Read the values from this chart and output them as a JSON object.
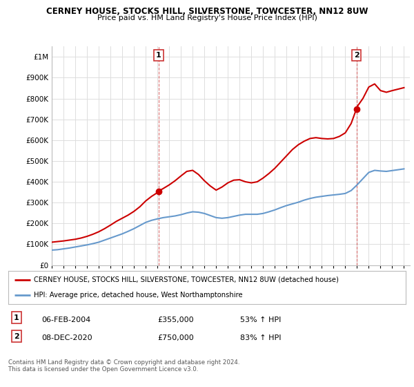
{
  "title": "CERNEY HOUSE, STOCKS HILL, SILVERSTONE, TOWCESTER, NN12 8UW",
  "subtitle": "Price paid vs. HM Land Registry's House Price Index (HPI)",
  "ytick_values": [
    0,
    100000,
    200000,
    300000,
    400000,
    500000,
    600000,
    700000,
    800000,
    900000,
    1000000
  ],
  "ylim": [
    0,
    1050000
  ],
  "xlim_start": 1995,
  "xlim_end": 2025.5,
  "red_line_color": "#cc0000",
  "blue_line_color": "#6699cc",
  "annotation_box_color": "#cc3333",
  "grid_color": "#dddddd",
  "bg_color": "#ffffff",
  "sale1_x": 2004.1,
  "sale1_y": 355000,
  "sale1_label": "1",
  "sale2_x": 2020.95,
  "sale2_y": 750000,
  "sale2_label": "2",
  "legend_line1": "CERNEY HOUSE, STOCKS HILL, SILVERSTONE, TOWCESTER, NN12 8UW (detached house)",
  "legend_line2": "HPI: Average price, detached house, West Northamptonshire",
  "table_row1": [
    "1",
    "06-FEB-2004",
    "£355,000",
    "53% ↑ HPI"
  ],
  "table_row2": [
    "2",
    "08-DEC-2020",
    "£750,000",
    "83% ↑ HPI"
  ],
  "footer": "Contains HM Land Registry data © Crown copyright and database right 2024.\nThis data is licensed under the Open Government Licence v3.0.",
  "hpi_x": [
    1995.0,
    1995.5,
    1996.0,
    1996.5,
    1997.0,
    1997.5,
    1998.0,
    1998.5,
    1999.0,
    1999.5,
    2000.0,
    2000.5,
    2001.0,
    2001.5,
    2002.0,
    2002.5,
    2003.0,
    2003.5,
    2004.0,
    2004.5,
    2005.0,
    2005.5,
    2006.0,
    2006.5,
    2007.0,
    2007.5,
    2008.0,
    2008.5,
    2009.0,
    2009.5,
    2010.0,
    2010.5,
    2011.0,
    2011.5,
    2012.0,
    2012.5,
    2013.0,
    2013.5,
    2014.0,
    2014.5,
    2015.0,
    2015.5,
    2016.0,
    2016.5,
    2017.0,
    2017.5,
    2018.0,
    2018.5,
    2019.0,
    2019.5,
    2020.0,
    2020.5,
    2021.0,
    2021.5,
    2022.0,
    2022.5,
    2023.0,
    2023.5,
    2024.0,
    2024.5,
    2025.0
  ],
  "hpi_y": [
    72000,
    74000,
    78000,
    82000,
    87000,
    92000,
    97000,
    103000,
    110000,
    120000,
    130000,
    140000,
    150000,
    162000,
    175000,
    190000,
    205000,
    215000,
    222000,
    228000,
    232000,
    236000,
    242000,
    250000,
    256000,
    254000,
    248000,
    238000,
    228000,
    225000,
    228000,
    234000,
    240000,
    244000,
    244000,
    244000,
    248000,
    256000,
    265000,
    276000,
    286000,
    294000,
    302000,
    312000,
    320000,
    326000,
    330000,
    334000,
    337000,
    340000,
    344000,
    358000,
    385000,
    415000,
    445000,
    455000,
    452000,
    450000,
    454000,
    458000,
    462000
  ],
  "price_x": [
    1995.0,
    1995.5,
    1996.0,
    1996.5,
    1997.0,
    1997.5,
    1998.0,
    1998.5,
    1999.0,
    1999.5,
    2000.0,
    2000.5,
    2001.0,
    2001.5,
    2002.0,
    2002.5,
    2003.0,
    2003.5,
    2004.0,
    2004.1,
    2004.5,
    2005.0,
    2005.5,
    2006.0,
    2006.5,
    2007.0,
    2007.5,
    2008.0,
    2008.5,
    2009.0,
    2009.5,
    2010.0,
    2010.5,
    2011.0,
    2011.5,
    2012.0,
    2012.5,
    2013.0,
    2013.5,
    2014.0,
    2014.5,
    2015.0,
    2015.5,
    2016.0,
    2016.5,
    2017.0,
    2017.5,
    2018.0,
    2018.5,
    2019.0,
    2019.5,
    2020.0,
    2020.5,
    2020.95,
    2021.0,
    2021.5,
    2022.0,
    2022.5,
    2023.0,
    2023.5,
    2024.0,
    2024.5,
    2025.0
  ],
  "price_y": [
    110000,
    113000,
    116000,
    120000,
    124000,
    130000,
    138000,
    148000,
    160000,
    175000,
    192000,
    210000,
    225000,
    240000,
    258000,
    280000,
    308000,
    330000,
    348000,
    355000,
    368000,
    385000,
    405000,
    428000,
    450000,
    455000,
    435000,
    405000,
    380000,
    360000,
    375000,
    395000,
    408000,
    410000,
    400000,
    395000,
    400000,
    418000,
    440000,
    465000,
    495000,
    525000,
    555000,
    578000,
    595000,
    608000,
    612000,
    608000,
    606000,
    608000,
    618000,
    635000,
    680000,
    750000,
    760000,
    800000,
    855000,
    870000,
    838000,
    830000,
    838000,
    845000,
    852000
  ]
}
